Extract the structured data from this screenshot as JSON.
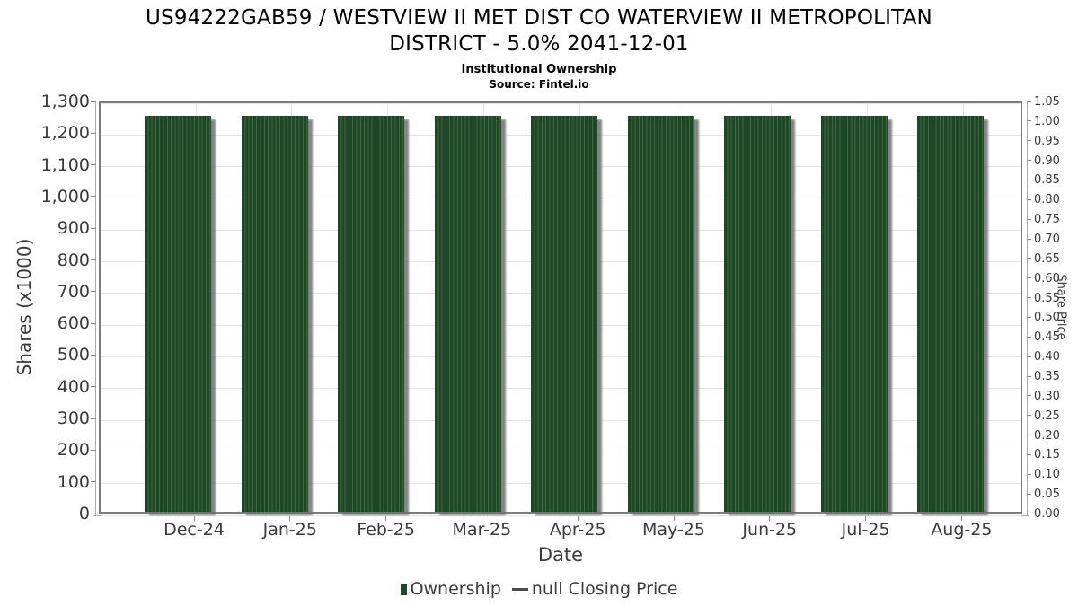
{
  "title": {
    "line1": "US94222GAB59 / WESTVIEW II MET DIST CO WATERVIEW II METROPOLITAN",
    "line2": "DISTRICT - 5.0% 2041-12-01",
    "subtitle": "Institutional Ownership",
    "source": "Source: Fintel.io"
  },
  "chart_data": {
    "type": "bar",
    "title": "US94222GAB59 / WESTVIEW II MET DIST CO WATERVIEW II METROPOLITAN DISTRICT - 5.0% 2041-12-01",
    "subtitle": "Institutional Ownership",
    "source": "Source: Fintel.io",
    "categories": [
      "Dec-24",
      "Jan-25",
      "Feb-25",
      "Mar-25",
      "Apr-25",
      "May-25",
      "Jun-25",
      "Jul-25",
      "Aug-25"
    ],
    "series": [
      {
        "name": "Ownership",
        "type": "bar",
        "axis": "left",
        "color": "#1e4723",
        "values": [
          1250,
          1250,
          1250,
          1250,
          1250,
          1250,
          1250,
          1250,
          1250
        ]
      },
      {
        "name": "null Closing Price",
        "type": "line",
        "axis": "right",
        "color": "#4a4a4a",
        "values": [
          null,
          null,
          null,
          null,
          null,
          null,
          null,
          null,
          null
        ]
      }
    ],
    "xlabel": "Date",
    "ylabel_left": "Shares (x1000)",
    "ylabel_right": "Share Price",
    "ylim_left": [
      0,
      1300
    ],
    "ylim_right": [
      0,
      1.05
    ],
    "ytick_step_left": 100,
    "ytick_step_right": 0.05,
    "grid": true,
    "legend_position": "bottom"
  },
  "axes": {
    "left": {
      "label": "Shares (x1000)",
      "ticks": [
        "0",
        "100",
        "200",
        "300",
        "400",
        "500",
        "600",
        "700",
        "800",
        "900",
        "1,000",
        "1,100",
        "1,200",
        "1,300"
      ]
    },
    "right": {
      "label": "Share Price",
      "ticks": [
        "0.00",
        "0.05",
        "0.10",
        "0.15",
        "0.20",
        "0.25",
        "0.30",
        "0.35",
        "0.40",
        "0.45",
        "0.50",
        "0.55",
        "0.60",
        "0.65",
        "0.70",
        "0.75",
        "0.80",
        "0.85",
        "0.90",
        "0.95",
        "1.00",
        "1.05"
      ]
    },
    "x": {
      "label": "Date"
    }
  },
  "legend": {
    "items": [
      {
        "label": "Ownership",
        "marker": "square",
        "color": "#1e4723"
      },
      {
        "label": "null Closing Price",
        "marker": "line",
        "color": "#4a4a4a"
      }
    ]
  },
  "colors": {
    "bar_fill": "#1e4723",
    "bar_stripe": "#3e6943",
    "bar_shadow": "#6e6e6e",
    "gridline": "#e4e4e4",
    "plot_border": "#7d7d7d",
    "text": "#3a3a3a",
    "title_text": "#000000"
  }
}
